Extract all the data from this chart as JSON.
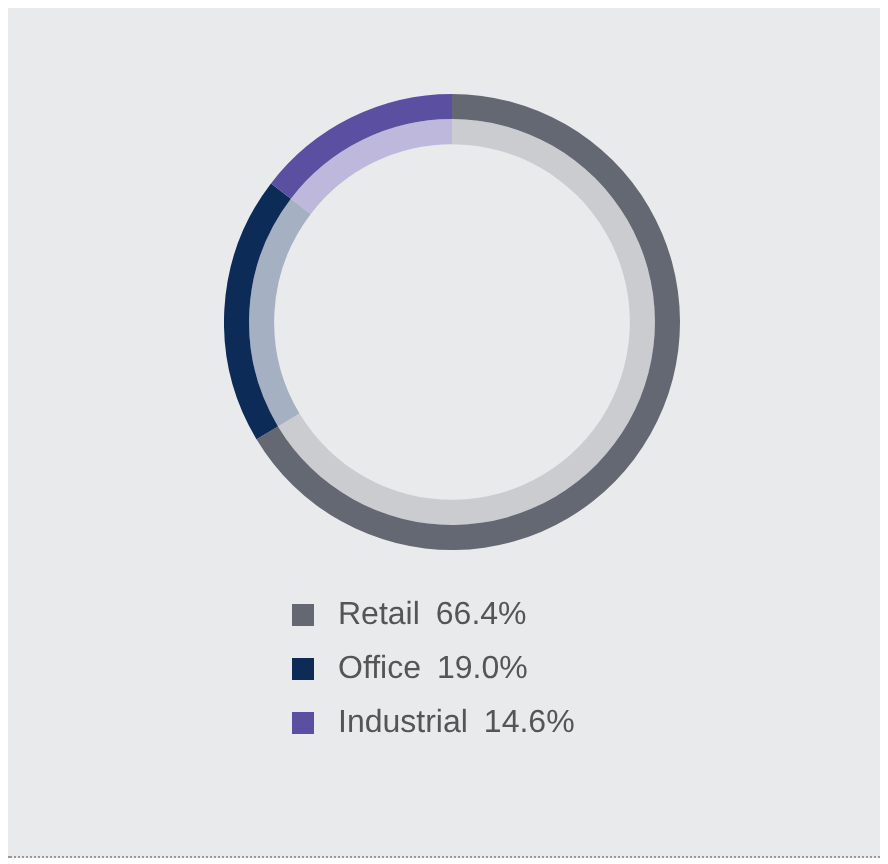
{
  "chart_data": {
    "type": "donut",
    "categories": [
      "Retail",
      "Office",
      "Industrial"
    ],
    "series": [
      {
        "values": [
          66.4,
          19.0,
          14.6
        ],
        "colors": [
          "#646873",
          "#0d2b57",
          "#5a4fa0"
        ]
      },
      {
        "values": [
          66.4,
          19.0,
          14.6
        ],
        "colors": [
          "#cbcccf",
          "#a5b0c2",
          "#bdb8dc"
        ]
      }
    ],
    "value_labels": [
      "66.4%",
      "19.0%",
      "14.6%"
    ],
    "legend": "bottom"
  }
}
